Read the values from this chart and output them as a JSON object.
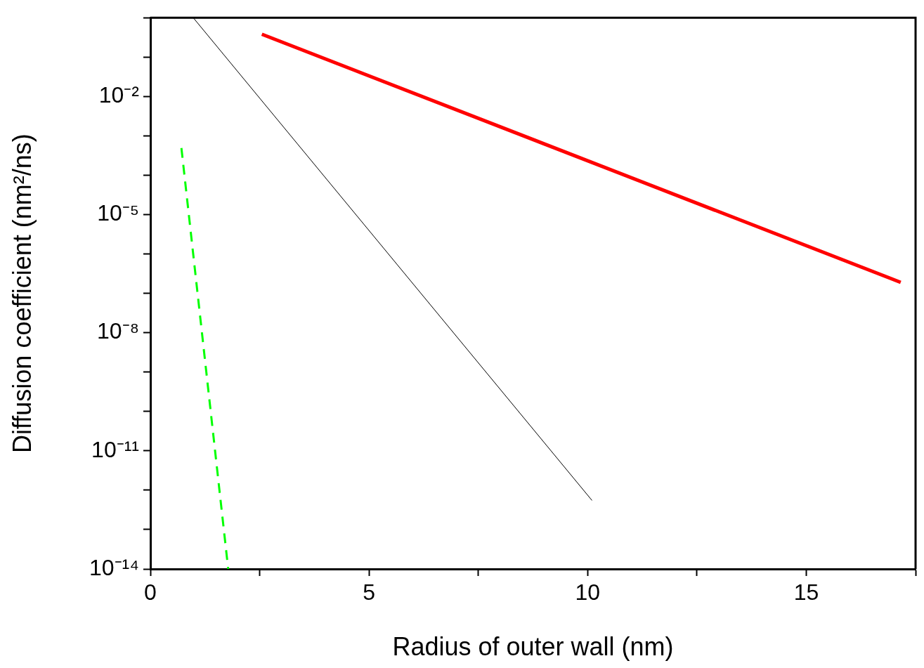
{
  "chart_data": {
    "type": "line",
    "xlabel": "Radius of outer wall (nm)",
    "ylabel": "Diffusion coefficient (nm²/ns)",
    "log": "y",
    "grid": false,
    "legend": false,
    "marker": "none",
    "xlim": [
      0,
      17.5
    ],
    "xticks": [
      0,
      {
        "value": 2.5,
        "label": null
      },
      5,
      {
        "value": 7.5,
        "label": null
      },
      10,
      {
        "value": 12.5,
        "label": null
      },
      15,
      {
        "value": 17.5,
        "label": null
      }
    ],
    "ylim": [
      1e-14,
      1
    ],
    "yticks": [
      {
        "value": 1e-14,
        "label": "10⁻¹⁴"
      },
      {
        "value": 1e-13,
        "label": null
      },
      {
        "value": 1e-12,
        "label": null
      },
      {
        "value": 1e-11,
        "label": "10⁻¹¹"
      },
      {
        "value": 1e-10,
        "label": null
      },
      {
        "value": 1e-09,
        "label": null
      },
      {
        "value": 1e-08,
        "label": "10⁻⁸"
      },
      {
        "value": 1e-07,
        "label": null
      },
      {
        "value": 1e-06,
        "label": null
      },
      {
        "value": 1e-05,
        "label": "10⁻⁵"
      },
      {
        "value": 0.0001,
        "label": null
      },
      {
        "value": 0.001,
        "label": null
      },
      {
        "value": 0.01,
        "label": "10⁻²"
      },
      {
        "value": 0.1,
        "label": null
      },
      {
        "value": 1,
        "label": null
      }
    ],
    "series": [
      {
        "color": "#ff0000",
        "x": [
          2.55,
          17.16
        ],
        "values": [
          0.38,
          1.9e-07
        ],
        "line_style": "solid"
      },
      {
        "color": "#000000",
        "x": [
          0.98,
          10.1
        ],
        "values": [
          1,
          5.5e-13
        ],
        "line_style": "solid"
      },
      {
        "color": "#00ff00",
        "x": [
          0.71,
          1.78
        ],
        "values": [
          0.00049,
          1e-14
        ],
        "line_style": "dashed"
      }
    ]
  }
}
